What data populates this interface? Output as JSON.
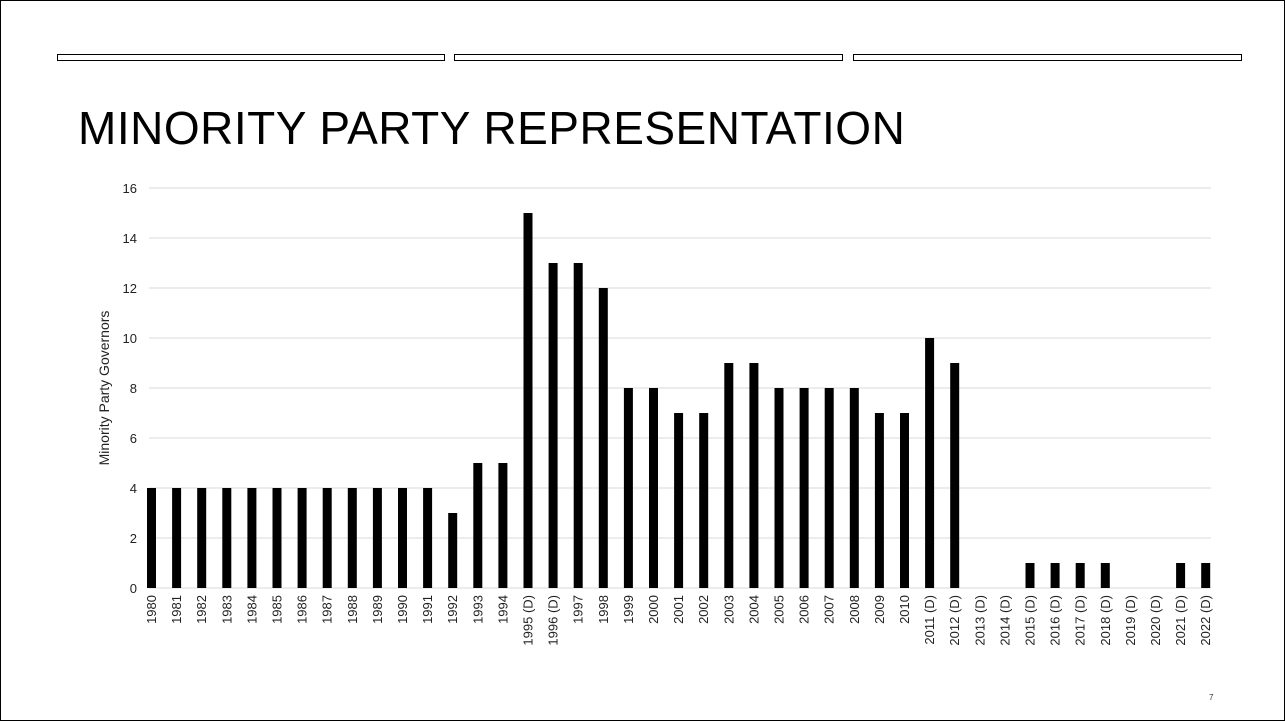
{
  "slide": {
    "title": "MINORITY PARTY REPRESENTATION",
    "page_number": "7"
  },
  "chart_data": {
    "type": "bar",
    "title": "",
    "xlabel": "",
    "ylabel": "Minority Party Governors",
    "ylim": [
      0,
      16
    ],
    "yticks": [
      0,
      2,
      4,
      6,
      8,
      10,
      12,
      14,
      16
    ],
    "grid": true,
    "bar_color": "#000000",
    "grid_color": "#d9d9d9",
    "categories": [
      "1980",
      "1981",
      "1982",
      "1983",
      "1984",
      "1985",
      "1986",
      "1987",
      "1988",
      "1989",
      "1990",
      "1991",
      "1992",
      "1993",
      "1994",
      "1995 (D)",
      "1996 (D)",
      "1997",
      "1998",
      "1999",
      "2000",
      "2001",
      "2002",
      "2003",
      "2004",
      "2005",
      "2006",
      "2007",
      "2008",
      "2009",
      "2010",
      "2011 (D)",
      "2012 (D)",
      "2013 (D)",
      "2014 (D)",
      "2015 (D)",
      "2016 (D)",
      "2017 (D)",
      "2018 (D)",
      "2019 (D)",
      "2020 (D)",
      "2021 (D)",
      "2022 (D)"
    ],
    "values": [
      4,
      4,
      4,
      4,
      4,
      4,
      4,
      4,
      4,
      4,
      4,
      4,
      3,
      5,
      5,
      15,
      13,
      13,
      12,
      8,
      8,
      7,
      7,
      9,
      9,
      8,
      8,
      8,
      8,
      7,
      7,
      10,
      9,
      0,
      0,
      1,
      1,
      1,
      1,
      0,
      0,
      1,
      1
    ]
  }
}
